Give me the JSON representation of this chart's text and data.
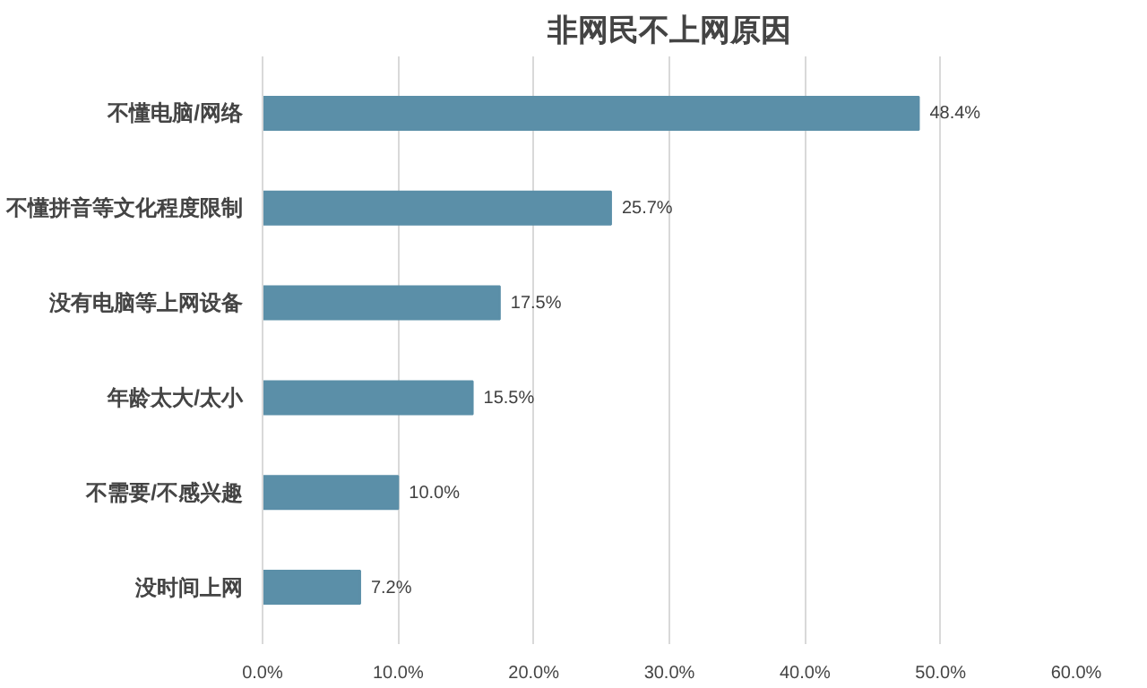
{
  "chart_data": {
    "type": "bar",
    "orientation": "horizontal",
    "title": "非网民不上网原因",
    "categories": [
      "不懂电脑/网络",
      "不懂拼音等文化程度限制",
      "没有电脑等上网设备",
      "年龄太大/太小",
      "不需要/不感兴趣",
      "没时间上网"
    ],
    "values": [
      48.4,
      25.7,
      17.5,
      15.5,
      10.0,
      7.2
    ],
    "value_labels": [
      "48.4%",
      "25.7%",
      "17.5%",
      "15.5%",
      "10.0%",
      "7.2%"
    ],
    "color": "#5b8fa8",
    "xlim": [
      0,
      60
    ],
    "xticks": [
      {
        "value": 0,
        "label": "0.0%"
      },
      {
        "value": 10,
        "label": "10.0%"
      },
      {
        "value": 20,
        "label": "20.0%"
      },
      {
        "value": 30,
        "label": "30.0%"
      },
      {
        "value": 40,
        "label": "40.0%"
      },
      {
        "value": 50,
        "label": "50.0%"
      },
      {
        "value": 60,
        "label": "60.0%"
      }
    ],
    "grid": "x"
  }
}
